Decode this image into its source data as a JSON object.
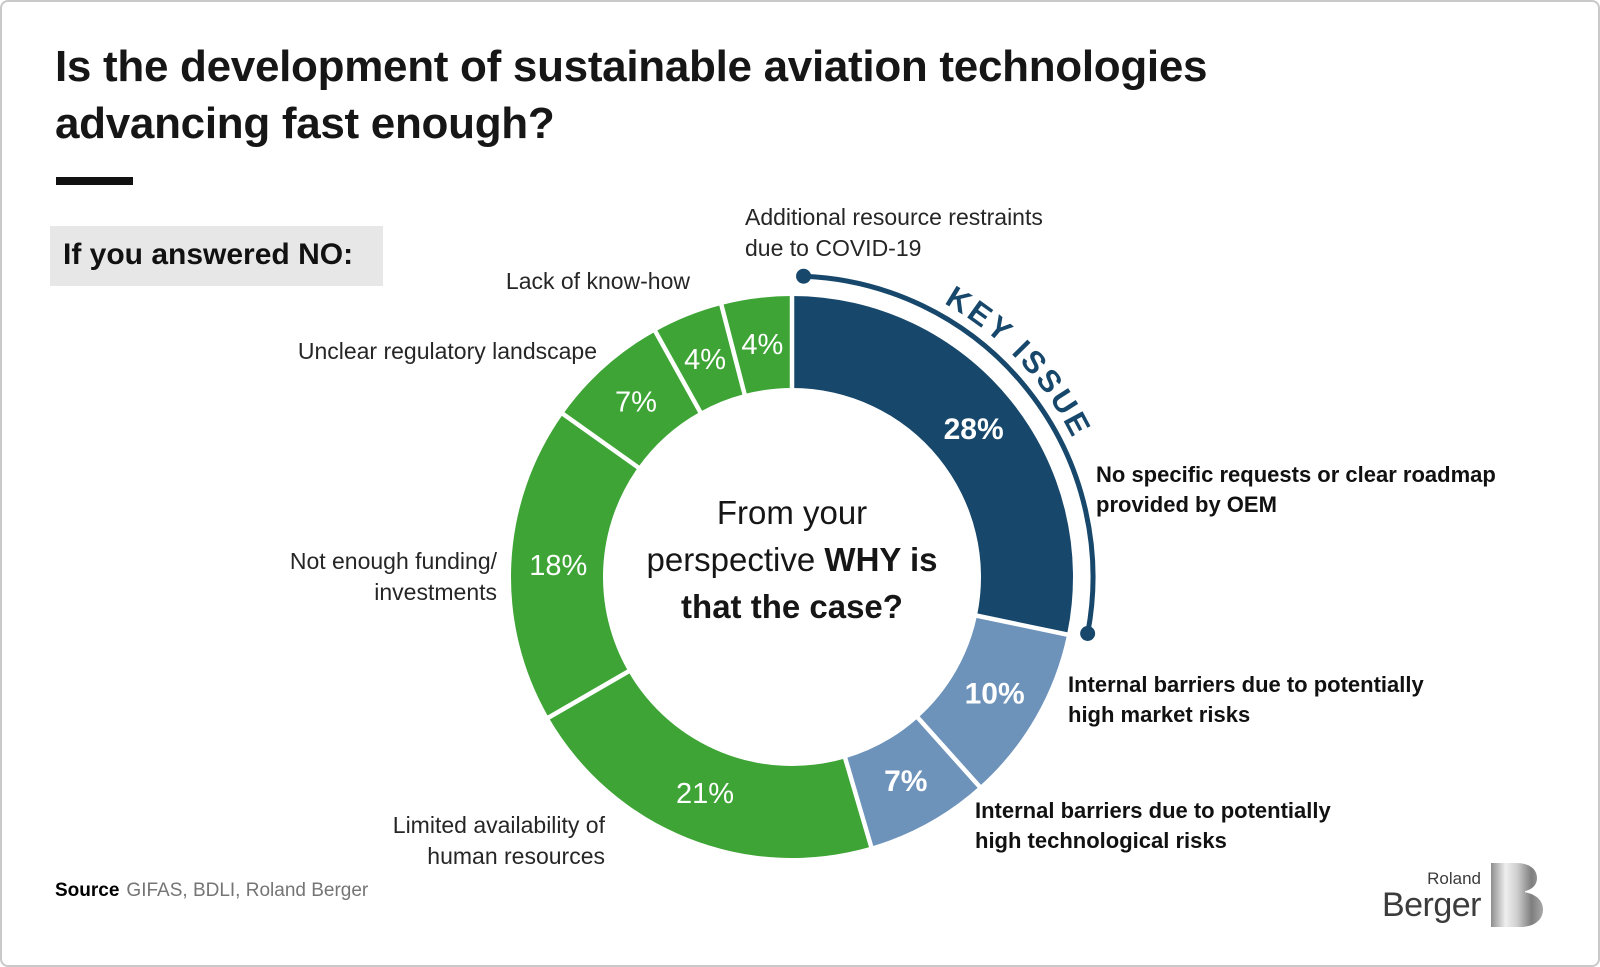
{
  "header": {
    "title": "Is the development of sustainable aviation technologies\nadvancing fast enough?",
    "condition_label": "If you answered NO:"
  },
  "chart_data": {
    "type": "pie",
    "subtype": "donut",
    "unit": "%",
    "start_angle_deg": 0,
    "direction": "clockwise",
    "center_question": {
      "line1": "From your",
      "line2_regular": "perspective ",
      "line2_bold": "WHY is",
      "line3_bold": "that the case?"
    },
    "key_issue_label": "KEY ISSUE",
    "key_issue_color": "#17486C",
    "colors": {
      "navy": "#17486C",
      "light_blue": "#6E93BB",
      "green": "#3DA435"
    },
    "segments": [
      {
        "label": "No specific requests or clear roadmap\nprovided by OEM",
        "value": 28,
        "color": "#17486C",
        "pct_bold": true,
        "key_issue": true
      },
      {
        "label": "Internal barriers due to potentially\nhigh market risks",
        "value": 10,
        "color": "#6E93BB",
        "pct_bold": true
      },
      {
        "label": "Internal barriers due to potentially\nhigh technological risks",
        "value": 7,
        "color": "#6E93BB",
        "pct_bold": true
      },
      {
        "label": "Limited availability of\nhuman resources",
        "value": 21,
        "color": "#3DA435",
        "pct_bold": false
      },
      {
        "label": "Not enough funding/\ninvestments",
        "value": 18,
        "color": "#3DA435",
        "pct_bold": false
      },
      {
        "label": "Unclear regulatory landscape",
        "value": 7,
        "color": "#3DA435",
        "pct_bold": false
      },
      {
        "label": "Lack of know-how",
        "value": 4,
        "color": "#3DA435",
        "pct_bold": false
      },
      {
        "label": "Additional resource restraints\ndue to COVID-19",
        "value": 4,
        "color": "#3DA435",
        "pct_bold": false
      }
    ]
  },
  "footer": {
    "source_label": "Source",
    "source_text": "GIFAS, BDLI, Roland Berger"
  },
  "logo": {
    "line1": "Roland",
    "line2": "Berger"
  }
}
